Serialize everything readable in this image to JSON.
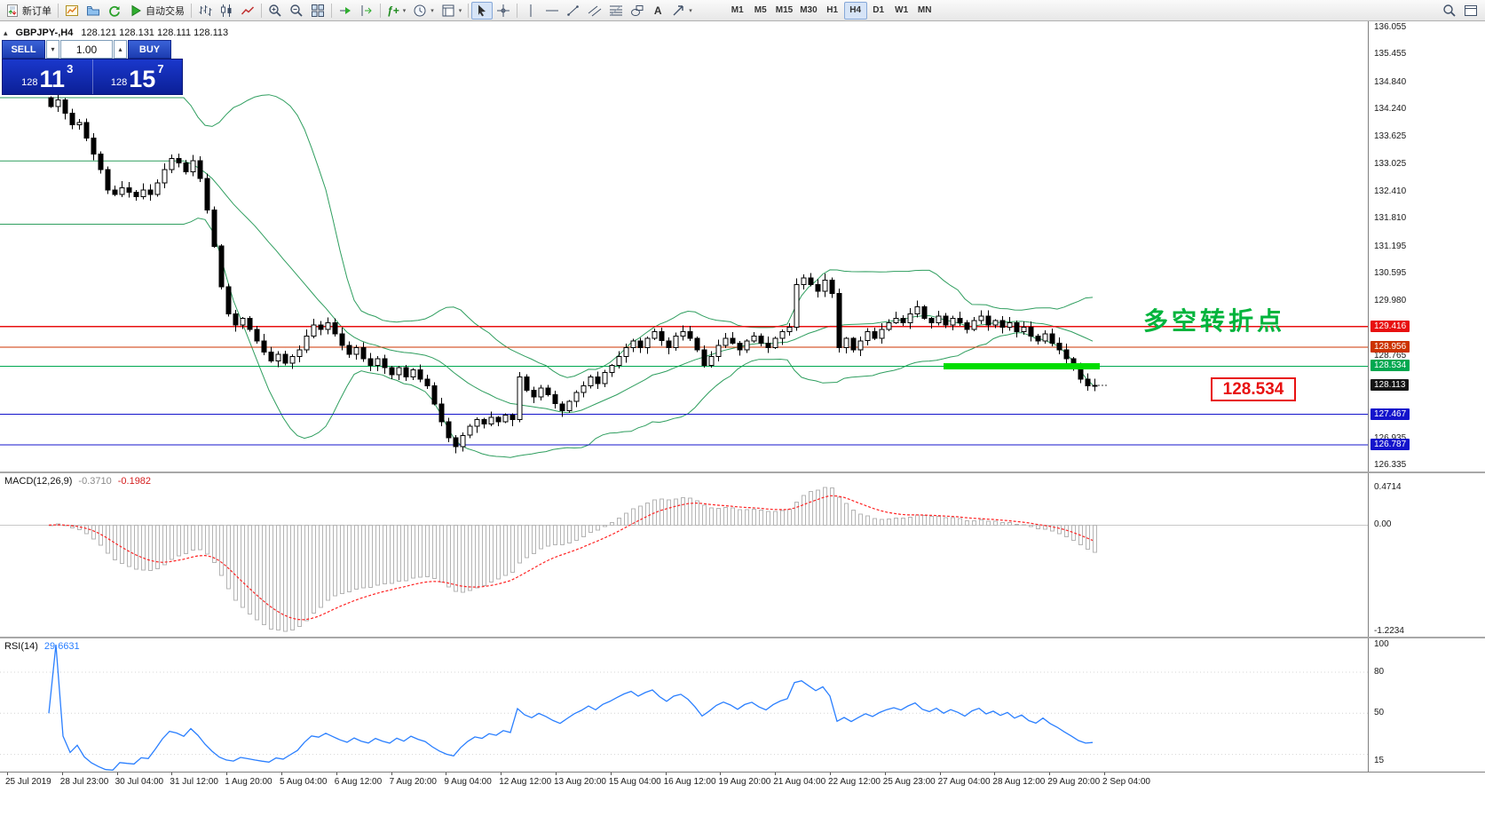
{
  "toolbar": {
    "new_order_label": "新订单",
    "autotrade_label": "自动交易",
    "text_tool_label": "A",
    "indicators_glyph": "ƒ+",
    "timeframes": [
      "M1",
      "M5",
      "M15",
      "M30",
      "H1",
      "H4",
      "D1",
      "W1",
      "MN"
    ],
    "active_timeframe": "H4"
  },
  "chart_header": {
    "symbol_period": "GBPJPY-,H4",
    "ohlc": "128.121 128.131 128.111 128.113"
  },
  "trade_panel": {
    "sell_label": "SELL",
    "buy_label": "BUY",
    "volume": "1.00",
    "sell_price_prefix": "128",
    "sell_price_main": "11",
    "sell_price_sup": "3",
    "buy_price_prefix": "128",
    "buy_price_main": "15",
    "buy_price_sup": "7"
  },
  "annotations": {
    "turning_point": "多空转折点",
    "price_box": "128.534"
  },
  "price_axis": {
    "labels": [
      "136.055",
      "135.455",
      "134.840",
      "134.240",
      "133.625",
      "133.025",
      "132.410",
      "131.810",
      "131.195",
      "130.595",
      "129.980",
      "128.765",
      "126.935",
      "126.335"
    ],
    "tags": [
      {
        "value": "129.416",
        "color": "#e81010"
      },
      {
        "value": "128.956",
        "color": "#cc3300"
      },
      {
        "value": "128.534",
        "color": "#00a850"
      },
      {
        "value": "128.113",
        "color": "#141414"
      },
      {
        "value": "127.467",
        "color": "#1414cc"
      },
      {
        "value": "126.787",
        "color": "#1414cc"
      }
    ]
  },
  "macd_panel": {
    "name": "MACD(12,26,9)",
    "main_value": "-0.3710",
    "signal_value": "-0.1982",
    "scale_max": "0.4714",
    "scale_zero": "0.00",
    "scale_min": "-1.2234"
  },
  "rsi_panel": {
    "name": "RSI(14)",
    "value": "29.6631",
    "scale": [
      "100",
      "80",
      "50",
      "15"
    ]
  },
  "time_axis": [
    "25 Jul 2019",
    "28 Jul 23:00",
    "30 Jul 04:00",
    "31 Jul 12:00",
    "1 Aug 20:00",
    "5 Aug 04:00",
    "6 Aug 12:00",
    "7 Aug 20:00",
    "9 Aug 04:00",
    "12 Aug 12:00",
    "13 Aug 20:00",
    "15 Aug 04:00",
    "16 Aug 12:00",
    "19 Aug 20:00",
    "21 Aug 04:00",
    "22 Aug 12:00",
    "25 Aug 23:00",
    "27 Aug 04:00",
    "28 Aug 12:00",
    "29 Aug 20:00",
    "2 Sep 04:00"
  ],
  "chart_data": {
    "type": "candlestick",
    "symbol": "GBPJPY",
    "timeframe": "H4",
    "title": "GBPJPY-,H4",
    "ohlc_current": {
      "open": 128.121,
      "high": 128.131,
      "low": 128.111,
      "close": 128.113
    },
    "price_axis_range": [
      126.335,
      136.055
    ],
    "closes": [
      134.3,
      134.45,
      134.15,
      133.9,
      133.95,
      133.6,
      133.25,
      132.9,
      132.45,
      132.35,
      132.5,
      132.4,
      132.3,
      132.45,
      132.35,
      132.6,
      132.9,
      133.15,
      133.05,
      132.85,
      133.1,
      132.7,
      132.0,
      131.2,
      130.3,
      129.7,
      129.45,
      129.6,
      129.35,
      129.1,
      128.85,
      128.65,
      128.8,
      128.6,
      128.75,
      128.9,
      129.2,
      129.45,
      129.35,
      129.5,
      129.25,
      129.0,
      128.8,
      128.95,
      128.7,
      128.55,
      128.7,
      128.5,
      128.35,
      128.5,
      128.3,
      128.45,
      128.25,
      128.1,
      127.7,
      127.3,
      126.95,
      126.75,
      127.0,
      127.2,
      127.35,
      127.25,
      127.4,
      127.3,
      127.45,
      127.35,
      128.3,
      128.0,
      127.85,
      128.05,
      127.9,
      127.7,
      127.55,
      127.75,
      127.95,
      128.1,
      128.3,
      128.15,
      128.4,
      128.55,
      128.75,
      128.95,
      129.1,
      128.95,
      129.15,
      129.3,
      129.1,
      128.95,
      129.2,
      129.3,
      129.15,
      128.9,
      128.55,
      128.75,
      129.0,
      129.15,
      129.05,
      128.9,
      129.1,
      129.2,
      129.05,
      128.95,
      129.15,
      129.3,
      129.4,
      130.35,
      130.5,
      130.35,
      130.2,
      130.45,
      130.15,
      128.95,
      129.15,
      128.9,
      129.1,
      129.3,
      129.15,
      129.35,
      129.5,
      129.6,
      129.5,
      129.7,
      129.85,
      129.6,
      129.5,
      129.65,
      129.45,
      129.6,
      129.5,
      129.35,
      129.55,
      129.65,
      129.45,
      129.55,
      129.4,
      129.5,
      129.3,
      129.4,
      129.2,
      129.1,
      129.25,
      129.05,
      128.9,
      128.7,
      128.5,
      128.25,
      128.1,
      128.113
    ],
    "indicators": {
      "bollinger": {
        "period": 20,
        "deviation": 2,
        "color": "#2f9e5f"
      },
      "macd": {
        "fast": 12,
        "slow": 26,
        "signal": 9,
        "current_main": -0.371,
        "current_signal": -0.1982
      },
      "rsi": {
        "period": 14,
        "current": 29.6631
      }
    },
    "levels": [
      {
        "price": 129.416,
        "color": "#e81010"
      },
      {
        "price": 128.956,
        "color": "#cc3300"
      },
      {
        "price": 128.534,
        "color": "#00a850"
      },
      {
        "price": 127.467,
        "color": "#1414cc"
      },
      {
        "price": 126.787,
        "color": "#1414cc"
      }
    ],
    "highlight_zone": {
      "price": 128.534,
      "x_start_index": 126,
      "x_end_index": 148,
      "color": "#00dd00"
    }
  }
}
